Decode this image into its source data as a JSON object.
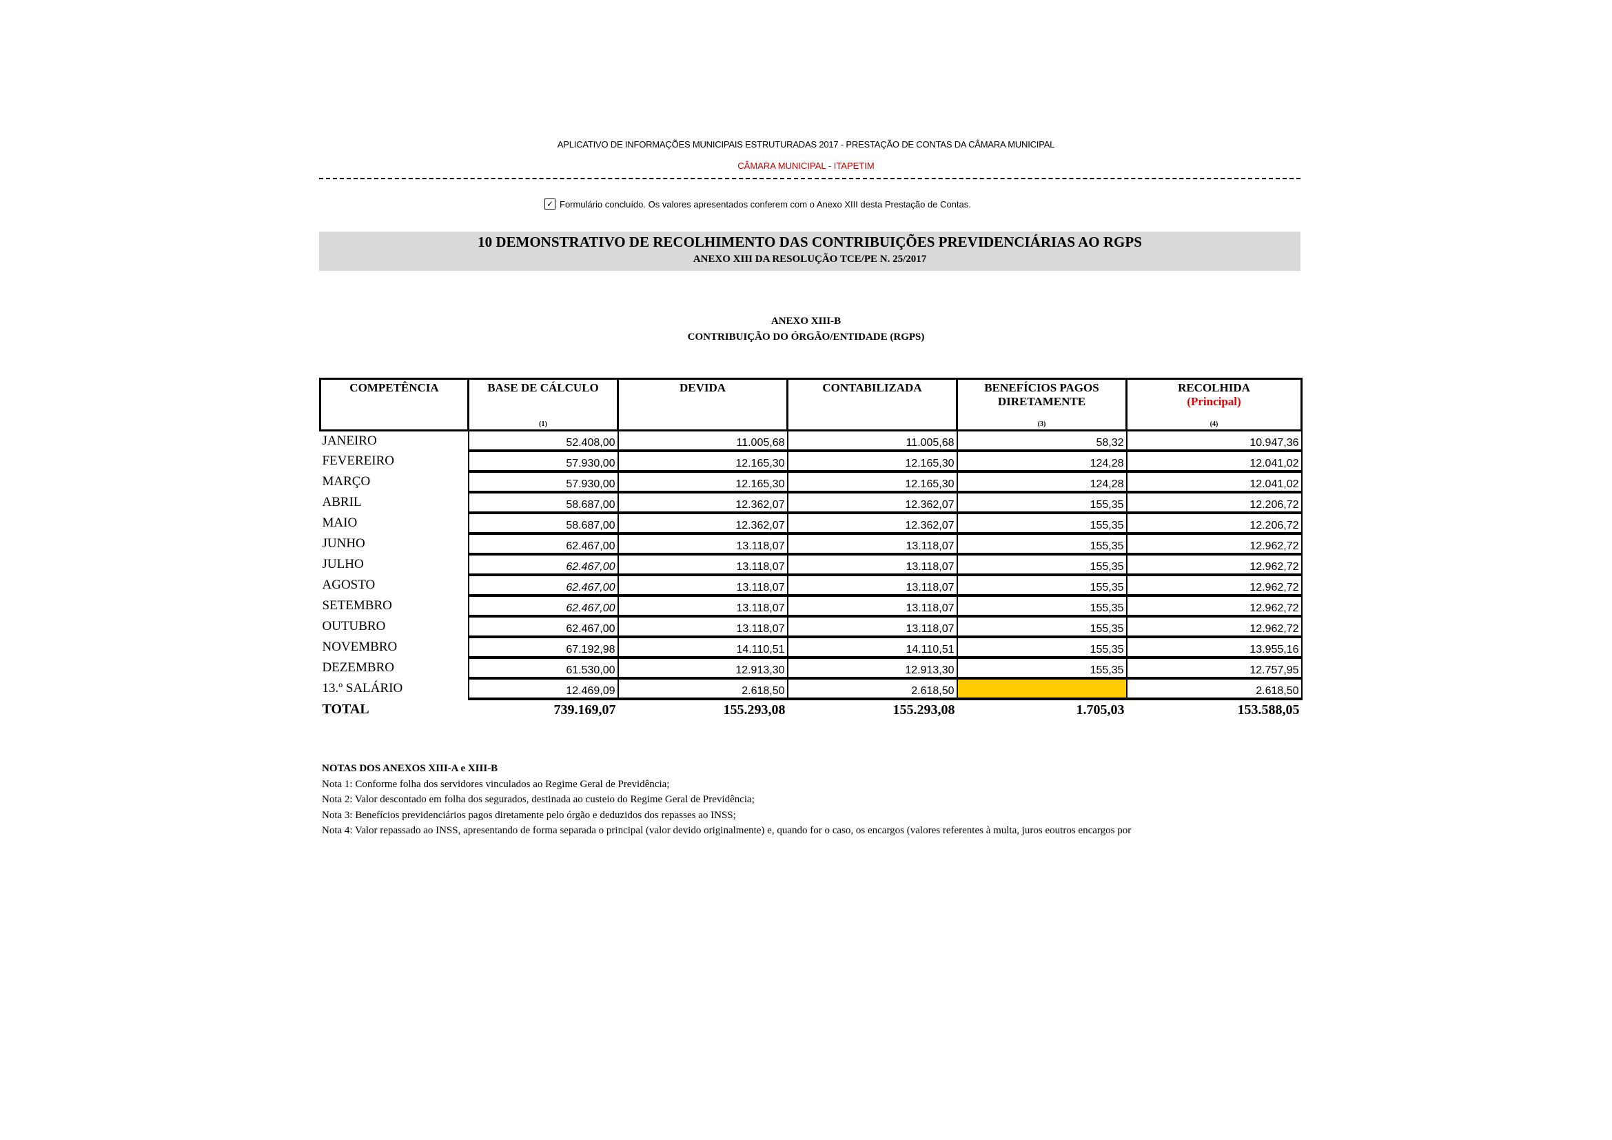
{
  "header": {
    "app_title": "APLICATIVO DE INFORMAÇÕES MUNICIPAIS ESTRUTURADAS 2017 - PRESTAÇÃO DE CONTAS DA CÂMARA MUNICIPAL",
    "entity": "CÂMARA MUNICIPAL - ITAPETIM",
    "checkbox_checked": true,
    "checkbox_label": "Formulário concluído. Os valores apresentados conferem com o Anexo XIII desta Prestação de Contas."
  },
  "band": {
    "title": "10 DEMONSTRATIVO DE RECOLHIMENTO DAS CONTRIBUIÇÕES PREVIDENCIÁRIAS AO RGPS",
    "subtitle": "ANEXO XIII DA RESOLUÇÃO TCE/PE N. 25/2017"
  },
  "section": {
    "annex": "ANEXO XIII-B",
    "title": "CONTRIBUIÇÃO DO ÓRGÃO/ENTIDADE (RGPS)"
  },
  "table": {
    "headers": [
      {
        "label": "COMPETÊNCIA",
        "note": ""
      },
      {
        "label": "BASE DE CÁLCULO",
        "note": "(1)"
      },
      {
        "label": "DEVIDA",
        "note": ""
      },
      {
        "label": "CONTABILIZADA",
        "note": ""
      },
      {
        "label": "BENEFÍCIOS PAGOS DIRETAMENTE",
        "note": "(3)"
      },
      {
        "label": "RECOLHIDA",
        "sublabel": "(Principal)",
        "note": "(4)"
      }
    ],
    "rows": [
      [
        "JANEIRO",
        "52.408,00",
        "11.005,68",
        "11.005,68",
        "58,32",
        "10.947,36"
      ],
      [
        "FEVEREIRO",
        "57.930,00",
        "12.165,30",
        "12.165,30",
        "124,28",
        "12.041,02"
      ],
      [
        "MARÇO",
        "57.930,00",
        "12.165,30",
        "12.165,30",
        "124,28",
        "12.041,02"
      ],
      [
        "ABRIL",
        "58.687,00",
        "12.362,07",
        "12.362,07",
        "155,35",
        "12.206,72"
      ],
      [
        "MAIO",
        "58.687,00",
        "12.362,07",
        "12.362,07",
        "155,35",
        "12.206,72"
      ],
      [
        "JUNHO",
        "62.467,00",
        "13.118,07",
        "13.118,07",
        "155,35",
        "12.962,72"
      ],
      [
        "JULHO",
        "62.467,00",
        "13.118,07",
        "13.118,07",
        "155,35",
        "12.962,72"
      ],
      [
        "AGOSTO",
        "62.467,00",
        "13.118,07",
        "13.118,07",
        "155,35",
        "12.962,72"
      ],
      [
        "SETEMBRO",
        "62.467,00",
        "13.118,07",
        "13.118,07",
        "155,35",
        "12.962,72"
      ],
      [
        "OUTUBRO",
        "62.467,00",
        "13.118,07",
        "13.118,07",
        "155,35",
        "12.962,72"
      ],
      [
        "NOVEMBRO",
        "67.192,98",
        "14.110,51",
        "14.110,51",
        "155,35",
        "13.955,16"
      ],
      [
        "DEZEMBRO",
        "61.530,00",
        "12.913,30",
        "12.913,30",
        "155,35",
        "12.757,95"
      ],
      [
        "13.º SALÁRIO",
        "12.469,09",
        "2.618,50",
        "2.618,50",
        "",
        "2.618,50"
      ]
    ],
    "total": [
      "TOTAL",
      "739.169,07",
      "155.293,08",
      "155.293,08",
      "1.705,03",
      "153.588,05"
    ],
    "highlight_color": "#ffcc00"
  },
  "notes": {
    "title": "NOTAS DOS ANEXOS XIII-A e XIII-B",
    "items": [
      "Nota 1: Conforme folha dos servidores vinculados ao Regime Geral de Previdência;",
      "Nota 2: Valor descontado em folha dos segurados, destinada ao custeio do Regime Geral de Previdência;",
      "Nota 3: Benefícios previdenciários pagos diretamente pelo órgão e deduzidos dos repasses ao INSS;",
      "Nota 4: Valor repassado ao INSS, apresentando de forma separada o principal (valor devido originalmente) e, quando for o caso, os encargos (valores referentes à multa, juros eoutros encargos por"
    ]
  }
}
